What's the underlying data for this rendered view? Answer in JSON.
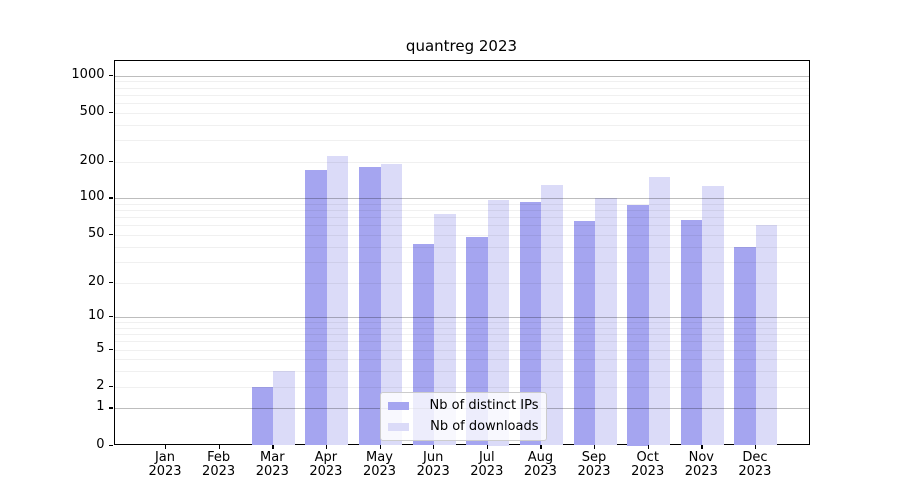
{
  "title": "quantreg 2023",
  "chart_data": {
    "type": "bar",
    "title": "quantreg 2023",
    "categories": [
      "Jan 2023",
      "Feb 2023",
      "Mar 2023",
      "Apr 2023",
      "May 2023",
      "Jun 2023",
      "Jul 2023",
      "Aug 2023",
      "Sep 2023",
      "Oct 2023",
      "Nov 2023",
      "Dec 2023"
    ],
    "series": [
      {
        "name": "Nb of distinct IPs",
        "color": "#a5a5f0",
        "values": [
          0,
          0,
          2,
          170,
          180,
          42,
          48,
          94,
          65,
          89,
          66,
          40
        ]
      },
      {
        "name": "Nb of downloads",
        "color": "#dbdbf8",
        "values": [
          0,
          0,
          3,
          220,
          190,
          75,
          97,
          128,
          101,
          150,
          127,
          60
        ]
      }
    ],
    "y_scale": "log1p",
    "y_ticks": [
      1000,
      500,
      200,
      100,
      50,
      20,
      10,
      5,
      2,
      1,
      0
    ],
    "ylim": [
      0,
      1300
    ],
    "xlabel": "",
    "ylabel": "",
    "grid": true,
    "legend_position": "lower center"
  }
}
